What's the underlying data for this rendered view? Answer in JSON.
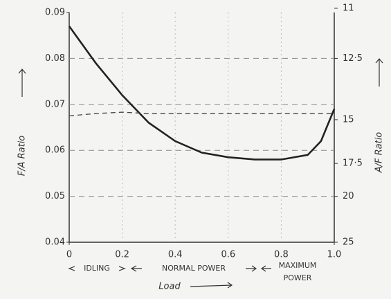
{
  "chart_data": {
    "type": "line",
    "x": [
      0,
      0.1,
      0.2,
      0.3,
      0.4,
      0.5,
      0.6,
      0.7,
      0.8,
      0.9,
      0.95,
      1
    ],
    "series": [
      {
        "color": "#222222",
        "values": [
          0.087,
          0.079,
          0.072,
          0.066,
          0.062,
          0.0595,
          0.0585,
          0.058,
          0.058,
          0.059,
          0.062,
          0.069
        ]
      },
      {
        "color": "#444444",
        "dash": true,
        "values": [
          0.0675,
          0.068,
          0.0683,
          0.068,
          0.068,
          0.068,
          0.068,
          0.068,
          0.068,
          0.068,
          0.068,
          0.068
        ]
      }
    ],
    "xlim": [
      0,
      1
    ],
    "xticks": [
      0,
      0.2,
      0.4,
      0.6,
      0.8,
      {
        "value": 1,
        "label": "1.0"
      }
    ],
    "ylim": [
      0.04,
      0.09
    ],
    "yticks": [
      0.04,
      0.05,
      0.06,
      0.07,
      0.08,
      0.09
    ],
    "y2lim": [
      25,
      11
    ],
    "y2_scale": "reciprocal",
    "y2ticks": [
      11,
      {
        "value": 12.5,
        "label": "12·5"
      },
      15,
      {
        "value": 17.5,
        "label": "17·5"
      },
      20,
      25
    ],
    "y_label": "F/A Ratio",
    "y2_label": "A/F Ratio",
    "x_label": "Load",
    "annotations": [
      "IDLING",
      "NORMAL POWER",
      "MAXIMUM",
      "POWER"
    ],
    "grid": true
  }
}
